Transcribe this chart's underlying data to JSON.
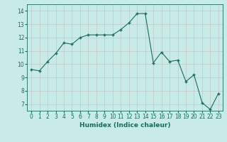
{
  "x": [
    0,
    1,
    2,
    3,
    4,
    5,
    6,
    7,
    8,
    9,
    10,
    11,
    12,
    13,
    14,
    15,
    16,
    17,
    18,
    19,
    20,
    21,
    22,
    23
  ],
  "y": [
    9.6,
    9.5,
    10.2,
    10.8,
    11.6,
    11.5,
    12.0,
    12.2,
    12.2,
    12.2,
    12.2,
    12.6,
    13.1,
    13.8,
    13.8,
    10.1,
    10.9,
    10.2,
    10.3,
    8.7,
    9.2,
    7.1,
    6.6,
    7.8
  ],
  "line_color": "#1a6b5e",
  "marker": "+",
  "marker_size": 3,
  "bg_color": "#c8ebe8",
  "grid_color": "#c0c8c8",
  "xlabel": "Humidex (Indice chaleur)",
  "xlim": [
    -0.5,
    23.5
  ],
  "ylim": [
    6.5,
    14.5
  ],
  "yticks": [
    7,
    8,
    9,
    10,
    11,
    12,
    13,
    14
  ],
  "xticks": [
    0,
    1,
    2,
    3,
    4,
    5,
    6,
    7,
    8,
    9,
    10,
    11,
    12,
    13,
    14,
    15,
    16,
    17,
    18,
    19,
    20,
    21,
    22,
    23
  ],
  "label_fontsize": 6.5,
  "tick_fontsize": 5.5
}
